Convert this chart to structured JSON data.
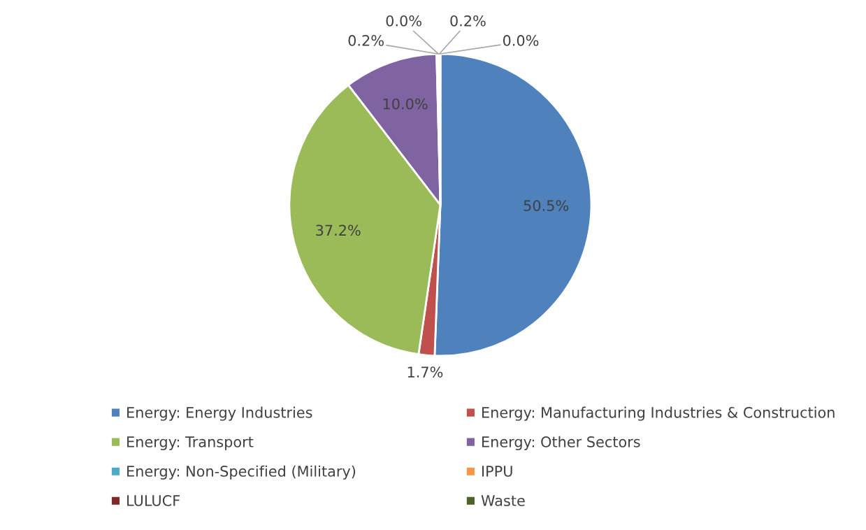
{
  "chart_data": {
    "type": "pie",
    "categories": [
      "Energy: Energy Industries",
      "Energy: Manufacturing Industries & Construction",
      "Energy: Transport",
      "Energy: Other Sectors",
      "Energy: Non-Specified (Military)",
      "IPPU",
      "LULUCF",
      "Waste"
    ],
    "values": [
      50.5,
      1.7,
      37.2,
      10.0,
      0.2,
      0.0,
      0.2,
      0.0
    ],
    "value_labels": [
      "50.5%",
      "1.7%",
      "37.2%",
      "10.0%",
      "0.2%",
      "0.0%",
      "0.2%",
      "0.0%"
    ],
    "colors": [
      "#4f81bd",
      "#c0504d",
      "#9bbb59",
      "#8064a2",
      "#4bacc6",
      "#f79646",
      "#7f2a28",
      "#4f6228"
    ],
    "legend": "bottom"
  }
}
